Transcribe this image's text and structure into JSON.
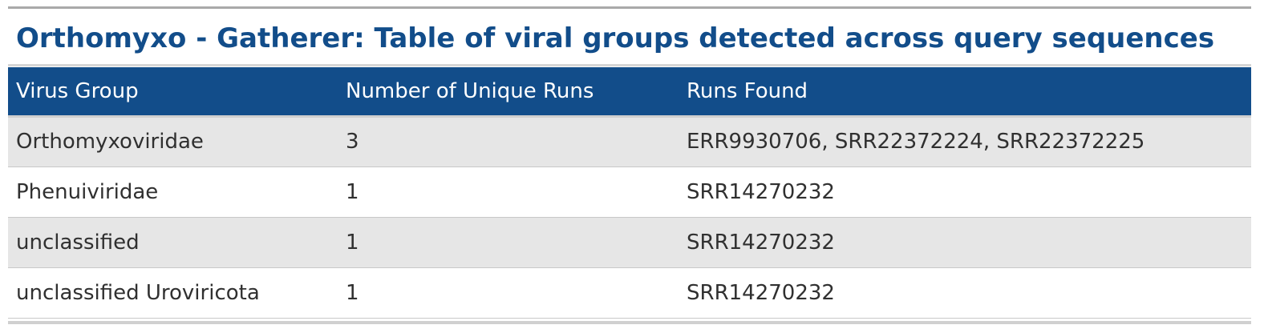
{
  "title": "Orthomyxo - Gatherer: Table of viral groups detected across query sequences",
  "table": {
    "headers": [
      "Virus Group",
      "Number of Unique Runs",
      "Runs Found"
    ],
    "rows": [
      [
        "Orthomyxoviridae",
        "3",
        "ERR9930706, SRR22372224, SRR22372225"
      ],
      [
        "Phenuiviridae",
        "1",
        "SRR14270232"
      ],
      [
        "unclassified",
        "1",
        "SRR14270232"
      ],
      [
        "unclassified Uroviricota",
        "1",
        "SRR14270232"
      ]
    ]
  },
  "colors": {
    "title": "#124d8a",
    "header_background": "#124d8a",
    "header_text": "#ffffff",
    "row_stripe": "#e6e6e6",
    "row_plain": "#ffffff"
  }
}
